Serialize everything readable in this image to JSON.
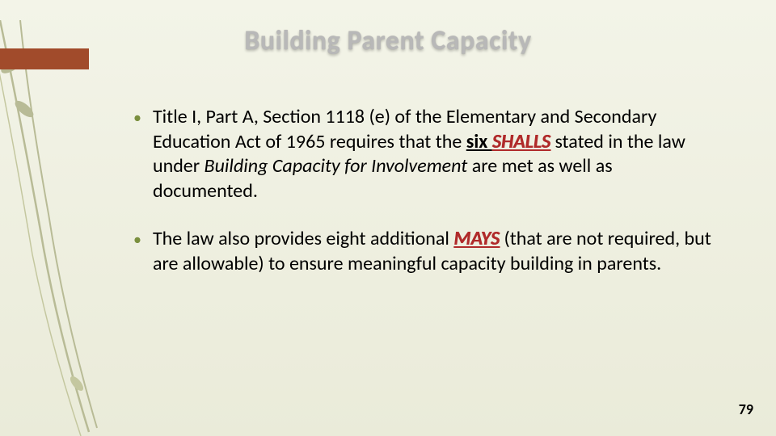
{
  "slide": {
    "title": "Building Parent Capacity",
    "page_number": "79",
    "background_gradient": [
      "#f3f4e8",
      "#eaebd9"
    ],
    "accent_bar_color": "#a14b2b",
    "bullet_color": "#7a8f3e",
    "emphasis_color": "#b02a2a",
    "title_color": "#b8b8b8",
    "body_fontsize": 24,
    "title_fontsize": 34,
    "bullets": [
      {
        "segments": [
          {
            "t": "Title I, Part A, Section 1118 (e) of the Elementary and Secondary Education Act of 1965 requires that the "
          },
          {
            "t": "six ",
            "cls": "underline bold"
          },
          {
            "t": "SHALLS",
            "cls": "underline red-bold-italic"
          },
          {
            "t": " stated in the law under "
          },
          {
            "t": "Building Capacity for Involvement",
            "cls": "italic"
          },
          {
            "t": " are met as well as documented."
          }
        ]
      },
      {
        "segments": [
          {
            "t": "The law also provides eight additional "
          },
          {
            "t": "MAYS",
            "cls": "underline red-bold-italic"
          },
          {
            "t": " (that are not required, but are allowable) to ensure meaningful capacity building in parents."
          }
        ]
      }
    ]
  }
}
